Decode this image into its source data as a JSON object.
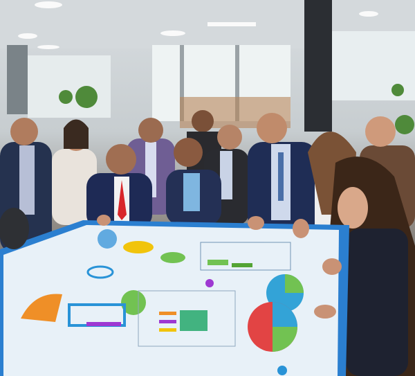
{
  "scene": {
    "colors": {
      "ceiling": "#d9dee1",
      "window": "#e9f0f1",
      "suit_navy": "#1f2d55",
      "suit_dark": "#24252b",
      "table_screen": "#e8f1f8",
      "table_edge": "#2b7fd0",
      "accent_orange": "#f08a1c",
      "accent_green": "#6cc04a",
      "accent_blue": "#1f8fd6",
      "accent_purple": "#9b2fd0",
      "tie_red": "#d8262a"
    }
  }
}
